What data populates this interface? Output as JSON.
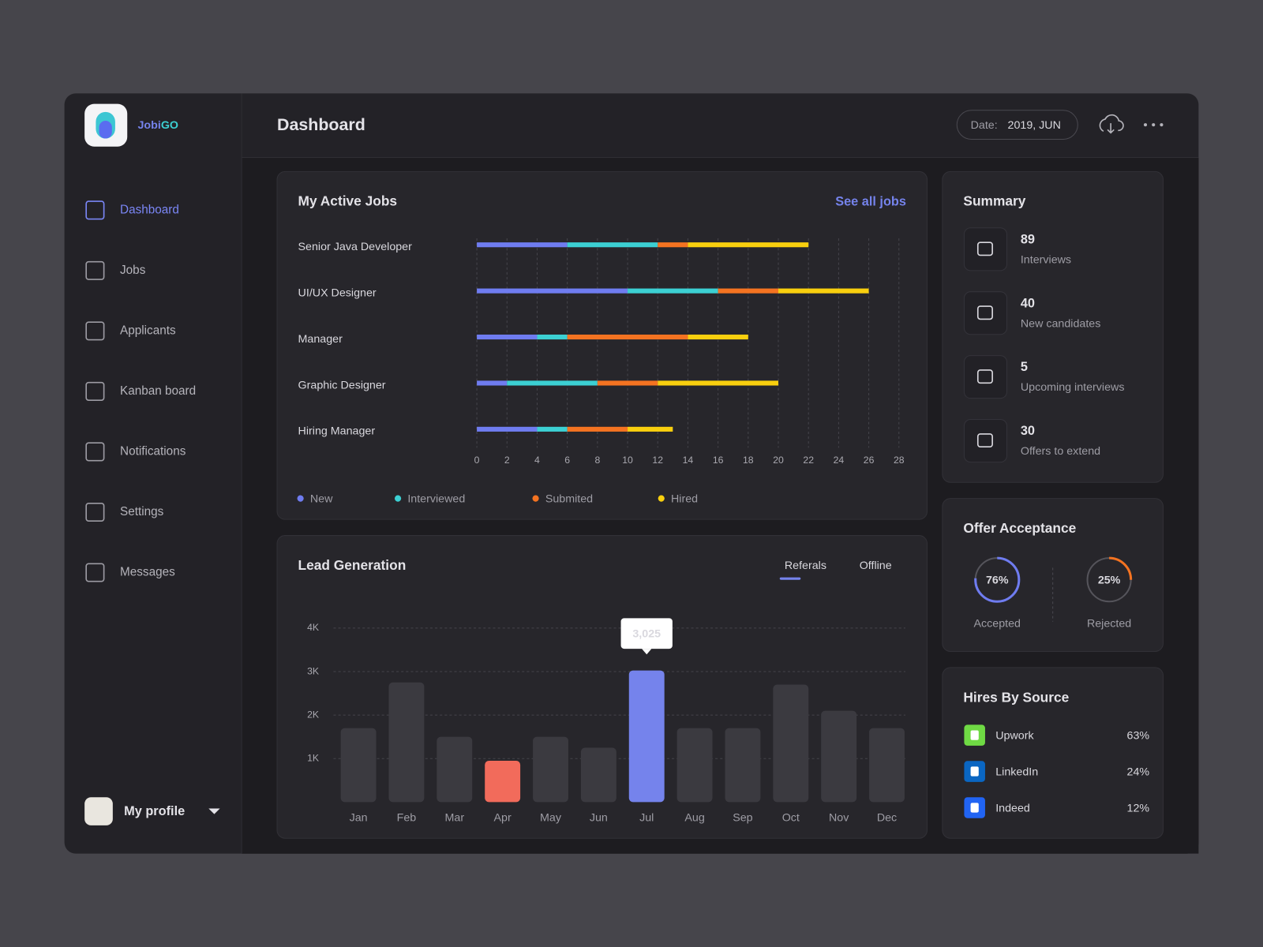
{
  "sidebar": {
    "brand": [
      "Jobi",
      "GO"
    ],
    "nav": [
      "Dashboard",
      "Jobs",
      "Applicants",
      "Kanban board",
      "Notifications",
      "Settings",
      "Messages"
    ],
    "profile": "My profile"
  },
  "header": {
    "title": "Dashboard",
    "date_label": "Date:",
    "date_value": "2019, JUN"
  },
  "chart_data": [
    {
      "type": "bar",
      "orientation": "horizontal",
      "stacked": true,
      "title": "My Active Jobs",
      "link": "See all jobs",
      "categories": [
        "Senior Java Developer",
        "UI/UX Designer",
        "Manager",
        "Graphic Designer",
        "Hiring Manager"
      ],
      "series": [
        {
          "name": "New",
          "color": "#6f7cf0",
          "values": [
            6,
            10,
            4,
            2,
            4
          ]
        },
        {
          "name": "Interviewed",
          "color": "#3cd0d3",
          "values": [
            6,
            6,
            2,
            6,
            2
          ]
        },
        {
          "name": "Submited",
          "color": "#f47321",
          "values": [
            2,
            4,
            8,
            4,
            4
          ]
        },
        {
          "name": "Hired",
          "color": "#f8cf0e",
          "values": [
            8,
            6,
            4,
            8,
            3
          ]
        }
      ],
      "xlim": [
        0,
        28
      ],
      "xticks": [
        0,
        2,
        4,
        6,
        8,
        10,
        12,
        14,
        16,
        18,
        20,
        22,
        24,
        26,
        28
      ],
      "grid": true
    },
    {
      "type": "bar",
      "title": "Lead Generation",
      "tabs": [
        "Referals",
        "Offline"
      ],
      "categories": [
        "Jan",
        "Feb",
        "Mar",
        "Apr",
        "May",
        "Jun",
        "Jul",
        "Aug",
        "Sep",
        "Oct",
        "Nov",
        "Dec"
      ],
      "values": [
        1700,
        2750,
        1500,
        950,
        1500,
        1250,
        3025,
        1700,
        1700,
        2700,
        2100,
        1700
      ],
      "value_labels": [
        null,
        null,
        null,
        null,
        null,
        null,
        "3,025",
        null,
        null,
        null,
        null,
        null
      ],
      "colors": [
        "#3b3a40",
        "#3b3a40",
        "#3b3a40",
        "#f26b5b",
        "#3b3a40",
        "#3b3a40",
        "#7583ec",
        "#3b3a40",
        "#3b3a40",
        "#3b3a40",
        "#3b3a40",
        "#3b3a40"
      ],
      "ylim": [
        0,
        4000
      ],
      "yticks": [
        {
          "value": 1000,
          "label": "1K"
        },
        {
          "value": 2000,
          "label": "2K"
        },
        {
          "value": 3000,
          "label": "3K"
        },
        {
          "value": 4000,
          "label": "4K"
        }
      ],
      "grid": true
    }
  ],
  "summary": {
    "title": "Summary",
    "items": [
      {
        "value": 89,
        "label": "Interviews"
      },
      {
        "value": 40,
        "label": "New candidates"
      },
      {
        "value": 5,
        "label": "Upcoming interviews"
      },
      {
        "value": 30,
        "label": "Offers to extend"
      }
    ]
  },
  "offer_acceptance": {
    "title": "Offer Acceptance",
    "items": [
      {
        "label": "Accepted",
        "value": 76,
        "value_label": "76%",
        "color": "#6f7cf0"
      },
      {
        "label": "Rejected",
        "value": 25,
        "value_label": "25%",
        "color": "#f47321"
      }
    ]
  },
  "hires_by_source": {
    "title": "Hires By Source",
    "items": [
      {
        "name": "Upwork",
        "share": "63%",
        "color": "#6fda44"
      },
      {
        "name": "LinkedIn",
        "share": "24%",
        "color": "#0a66c2"
      },
      {
        "name": "Indeed",
        "share": "12%",
        "color": "#2164f3"
      }
    ]
  }
}
